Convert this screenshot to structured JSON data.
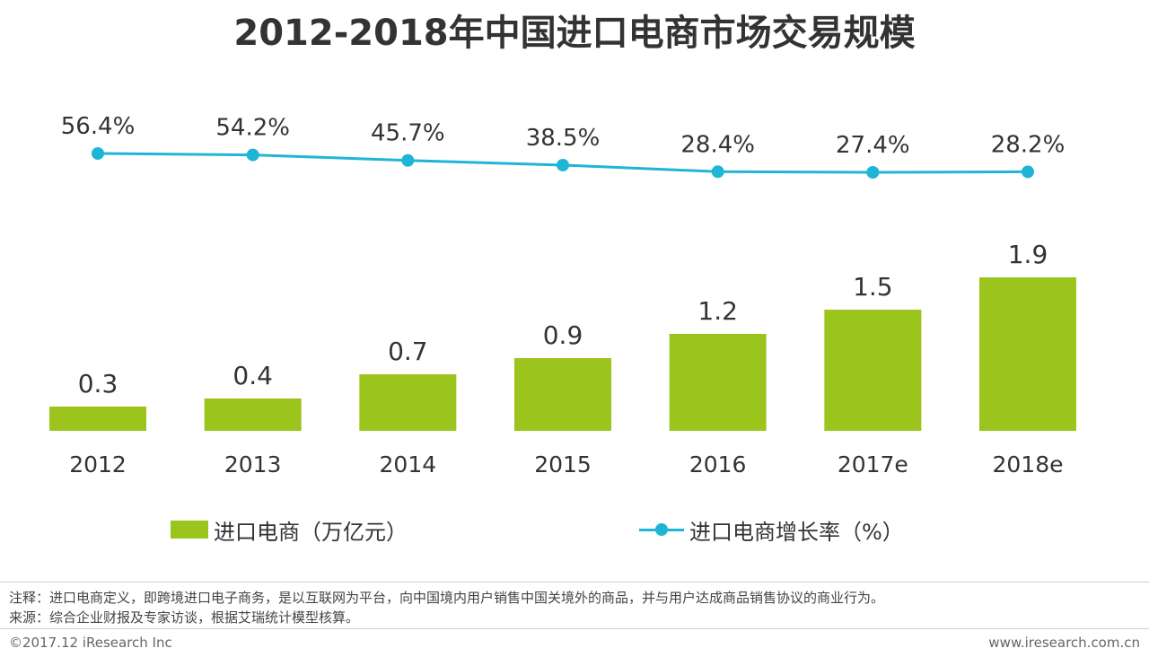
{
  "title": "2012-2018年中国进口电商市场交易规模",
  "chart_data": {
    "type": "bar+line",
    "title": "2012-2018年中国进口电商市场交易规模",
    "categories": [
      "2012",
      "2013",
      "2014",
      "2015",
      "2016",
      "2017e",
      "2018e"
    ],
    "series": [
      {
        "name": "进口电商（万亿元）",
        "type": "bar",
        "values": [
          0.3,
          0.4,
          0.7,
          0.9,
          1.2,
          1.5,
          1.9
        ],
        "labels": [
          "0.3",
          "0.4",
          "0.7",
          "0.9",
          "1.2",
          "1.5",
          "1.9"
        ],
        "color": "#9bc41c"
      },
      {
        "name": "进口电商增长率（%）",
        "type": "line",
        "values": [
          56.4,
          54.2,
          45.7,
          38.5,
          28.4,
          27.4,
          28.2
        ],
        "labels": [
          "56.4%",
          "54.2%",
          "45.7%",
          "38.5%",
          "28.4%",
          "27.4%",
          "28.2%"
        ],
        "color": "#1fb5d6"
      }
    ],
    "xlabel": "",
    "ylabel": "",
    "grid": false,
    "legend_position": "bottom"
  },
  "legend": {
    "bar_label": "进口电商（万亿元）",
    "line_label": "进口电商增长率（%）"
  },
  "footer": {
    "note": "注释：进口电商定义，即跨境进口电子商务，是以互联网为平台，向中国境内用户销售中国关境外的商品，并与用户达成商品销售协议的商业行为。",
    "source": "来源：综合企业财报及专家访谈，根据艾瑞统计模型核算。",
    "copyright": "©2017.12 iResearch Inc",
    "website": "www.iresearch.com.cn"
  }
}
